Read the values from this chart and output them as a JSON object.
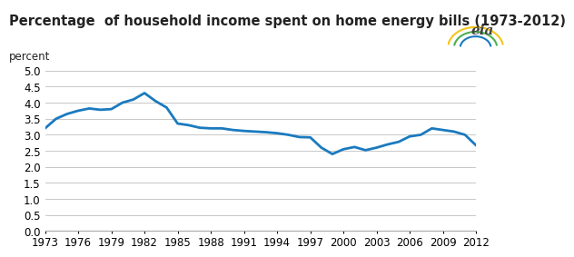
{
  "title": "Percentage  of household income spent on home energy bills (1973-2012)",
  "ylabel": "percent",
  "line_color": "#1a7abf",
  "background_color": "#ffffff",
  "grid_color": "#c8c8c8",
  "xlim": [
    1973,
    2012
  ],
  "ylim": [
    0.0,
    5.0
  ],
  "yticks": [
    0.0,
    0.5,
    1.0,
    1.5,
    2.0,
    2.5,
    3.0,
    3.5,
    4.0,
    4.5,
    5.0
  ],
  "xticks": [
    1973,
    1976,
    1979,
    1982,
    1985,
    1988,
    1991,
    1994,
    1997,
    2000,
    2003,
    2006,
    2009,
    2012
  ],
  "years": [
    1973,
    1974,
    1975,
    1976,
    1977,
    1978,
    1979,
    1980,
    1981,
    1982,
    1983,
    1984,
    1985,
    1986,
    1987,
    1988,
    1989,
    1990,
    1991,
    1992,
    1993,
    1994,
    1995,
    1996,
    1997,
    1998,
    1999,
    2000,
    2001,
    2002,
    2003,
    2004,
    2005,
    2006,
    2007,
    2008,
    2009,
    2010,
    2011,
    2012
  ],
  "values": [
    3.2,
    3.5,
    3.65,
    3.75,
    3.82,
    3.78,
    3.8,
    4.0,
    4.1,
    4.3,
    4.05,
    3.85,
    3.35,
    3.3,
    3.22,
    3.2,
    3.2,
    3.15,
    3.12,
    3.1,
    3.08,
    3.05,
    3.0,
    2.93,
    2.92,
    2.6,
    2.4,
    2.55,
    2.62,
    2.52,
    2.6,
    2.7,
    2.78,
    2.95,
    3.0,
    3.2,
    3.15,
    3.1,
    3.0,
    2.67
  ],
  "line_width": 2.0,
  "title_fontsize": 10.5,
  "ylabel_fontsize": 8.5,
  "tick_fontsize": 8.5
}
